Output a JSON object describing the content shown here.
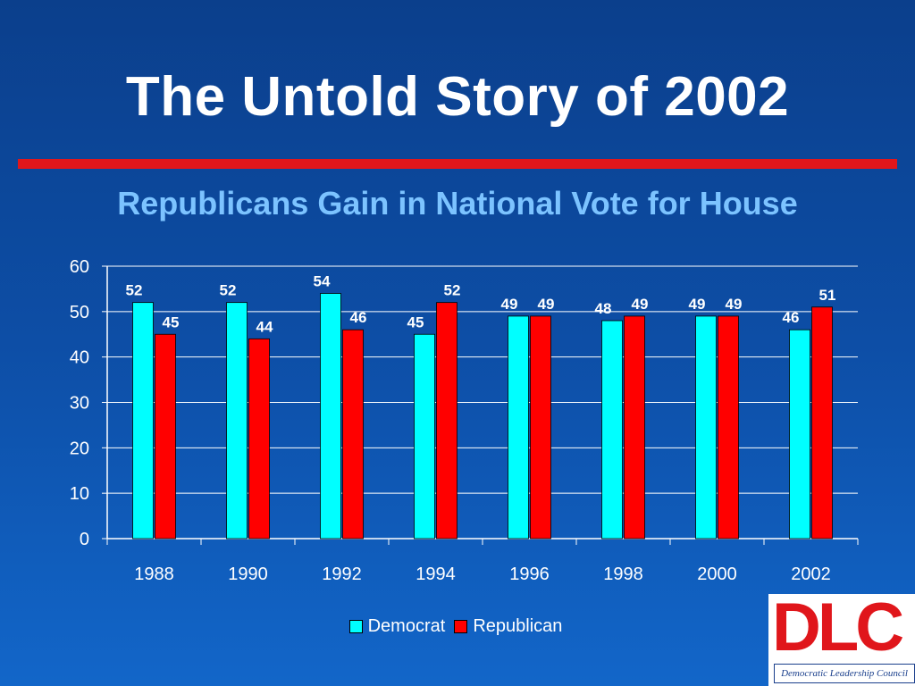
{
  "slide": {
    "title": "The Untold Story of 2002",
    "subtitle": "Republicans Gain in National Vote for House"
  },
  "logo": {
    "mark": "DLC",
    "caption": "Democratic Leadership Council"
  },
  "colors": {
    "democrat": "#00ffff",
    "republican": "#ff0000",
    "gridline": "#ffffff",
    "text": "#ffffff",
    "accent_rule": "#e0161b",
    "subtitle": "#7cc3ff"
  },
  "chart_data": {
    "type": "bar",
    "categories": [
      "1988",
      "1990",
      "1992",
      "1994",
      "1996",
      "1998",
      "2000",
      "2002"
    ],
    "series": [
      {
        "name": "Democrat",
        "values": [
          52,
          52,
          54,
          45,
          49,
          48,
          49,
          46
        ]
      },
      {
        "name": "Republican",
        "values": [
          45,
          44,
          46,
          52,
          49,
          49,
          49,
          51
        ]
      }
    ],
    "ylim": [
      0,
      60
    ],
    "yticks": [
      0,
      10,
      20,
      30,
      40,
      50,
      60
    ],
    "grid": true,
    "legend": "bottom"
  }
}
